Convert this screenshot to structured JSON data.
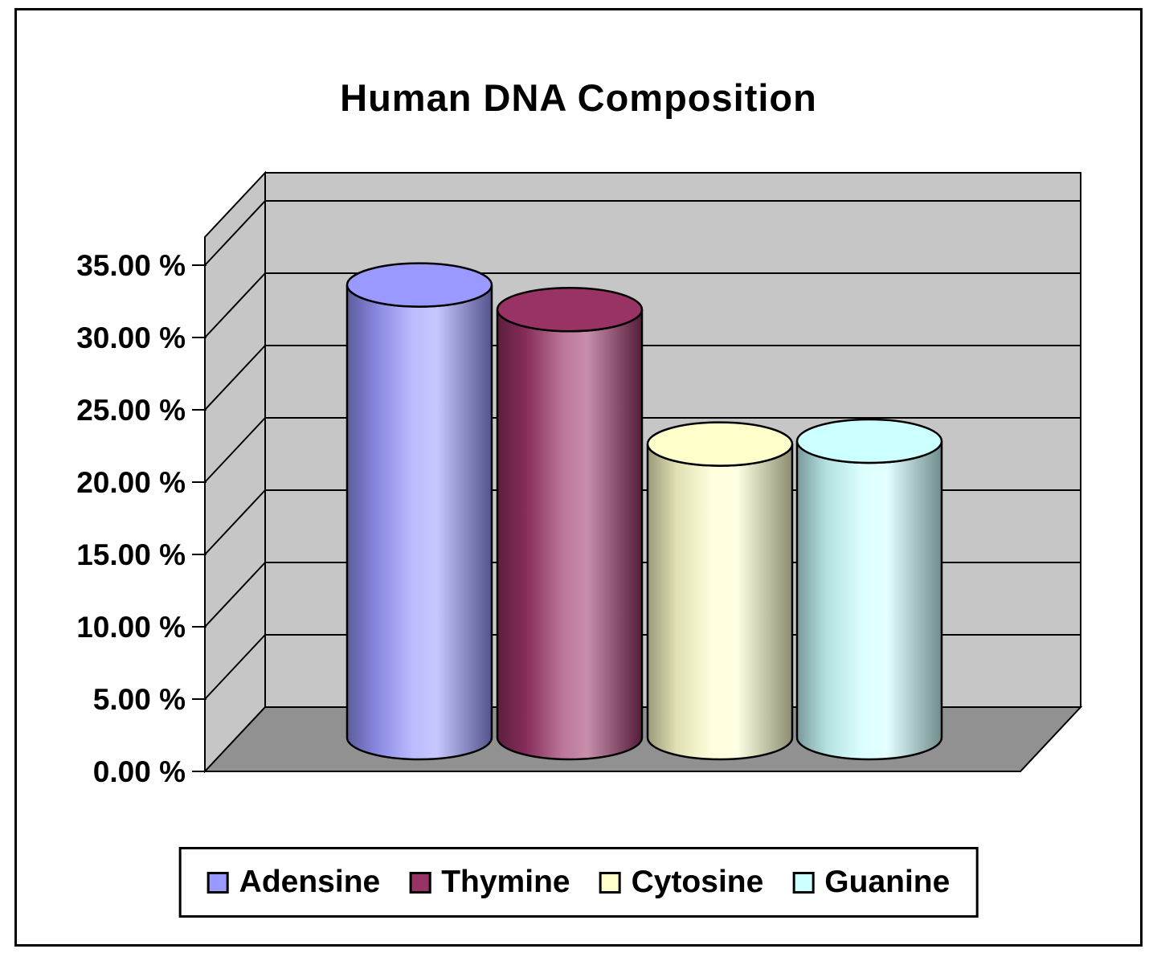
{
  "window": {
    "background": "#ffffff",
    "frame_border_color": "#000000"
  },
  "chart_data": {
    "type": "bar",
    "bar_shape": "cylinder",
    "projection": "3d",
    "title": "Human DNA Composition",
    "categories": [
      "Adensine",
      "Thymine",
      "Cytosine",
      "Guanine"
    ],
    "values": [
      31.3,
      29.6,
      20.3,
      20.5
    ],
    "unit": "%",
    "colors": [
      "#9999ff",
      "#993366",
      "#ffffcc",
      "#ccffff"
    ],
    "ylim": [
      0,
      35
    ],
    "ytick_step": 5,
    "ytick_labels": [
      "0.00 %",
      "5.00 %",
      "10.00 %",
      "15.00 %",
      "20.00 %",
      "25.00 %",
      "30.00 %",
      "35.00 %"
    ],
    "xlabel": "",
    "ylabel": "",
    "grid": true,
    "legend_position": "bottom",
    "wall_color": "#c6c6c6",
    "floor_color": "#919191",
    "gridline_color": "#000000",
    "text_color": "#000000"
  }
}
